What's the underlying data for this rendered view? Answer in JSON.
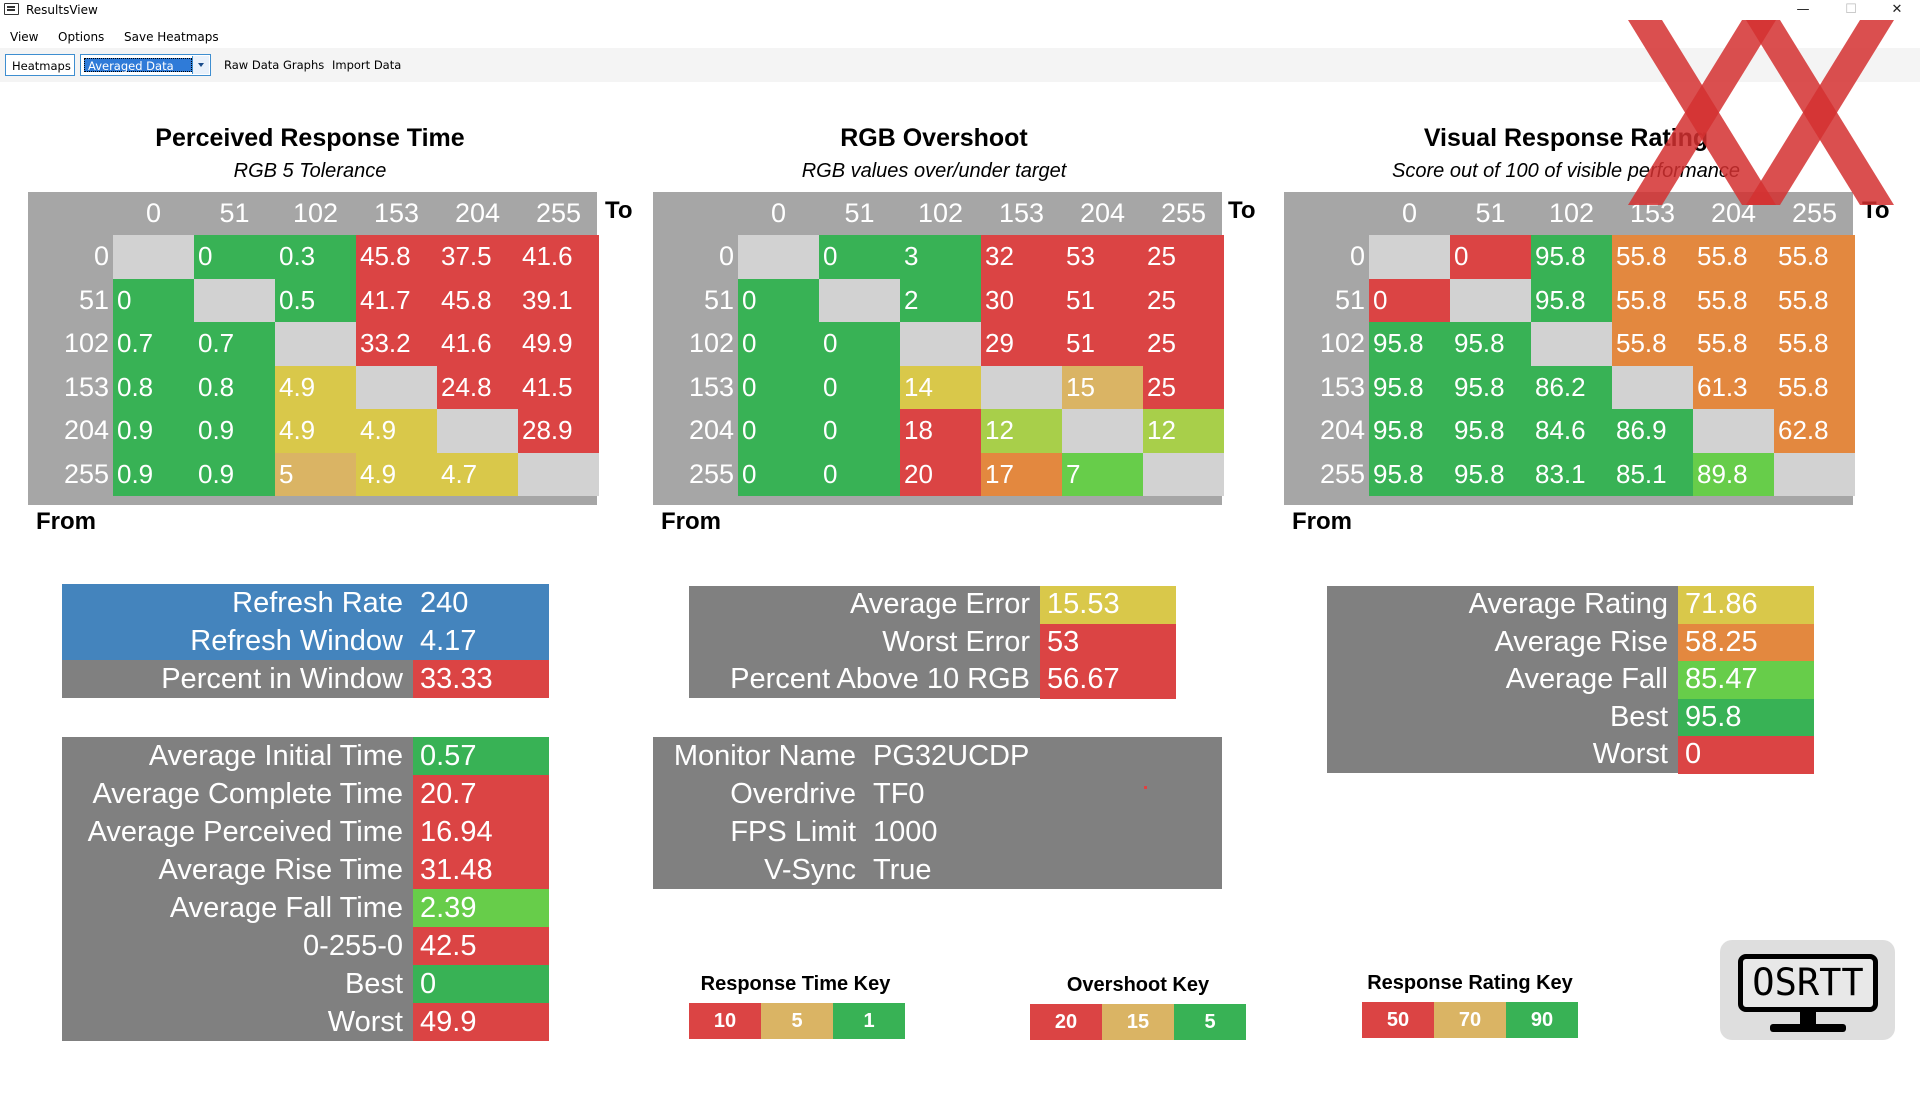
{
  "window": {
    "title": "ResultsView"
  },
  "menu": [
    "View",
    "Options",
    "Save Heatmaps"
  ],
  "toolbar": {
    "tab_heatmaps": "Heatmaps",
    "dropdown_value": "Averaged Data",
    "raw_graphs": "Raw Data Graphs",
    "import_data": "Import Data"
  },
  "colors": {
    "G": "#38b255",
    "L": "#67cd4a",
    "Y": "#d9c84a",
    "T": "#dab464",
    "O": "#e3883f",
    "R": "#db4444",
    "N": "#d2d2d2",
    "blue": "#4484bd",
    "lime": "#a8cf4a"
  },
  "axis": {
    "to": "To",
    "from": "From"
  },
  "heatmaps": [
    {
      "title": "Perceived Response Time",
      "subtitle": "RGB 5 Tolerance",
      "cols": [
        "0",
        "51",
        "102",
        "153",
        "204",
        "255"
      ],
      "rows": [
        "0",
        "51",
        "102",
        "153",
        "204",
        "255"
      ],
      "values": [
        [
          "",
          "0",
          "0.3",
          "45.8",
          "37.5",
          "41.6"
        ],
        [
          "0",
          "",
          "0.5",
          "41.7",
          "45.8",
          "39.1"
        ],
        [
          "0.7",
          "0.7",
          "",
          "33.2",
          "41.6",
          "49.9"
        ],
        [
          "0.8",
          "0.8",
          "4.9",
          "",
          "24.8",
          "41.5"
        ],
        [
          "0.9",
          "0.9",
          "4.9",
          "4.9",
          "",
          "28.9"
        ],
        [
          "0.9",
          "0.9",
          "5",
          "4.9",
          "4.7",
          ""
        ]
      ],
      "colors": [
        [
          "N",
          "G",
          "G",
          "R",
          "R",
          "R"
        ],
        [
          "G",
          "N",
          "G",
          "R",
          "R",
          "R"
        ],
        [
          "G",
          "G",
          "N",
          "R",
          "R",
          "R"
        ],
        [
          "G",
          "G",
          "Y",
          "N",
          "R",
          "R"
        ],
        [
          "G",
          "G",
          "Y",
          "Y",
          "N",
          "R"
        ],
        [
          "G",
          "G",
          "T",
          "Y",
          "Y",
          "N"
        ]
      ]
    },
    {
      "title": "RGB Overshoot",
      "subtitle": "RGB values over/under target",
      "cols": [
        "0",
        "51",
        "102",
        "153",
        "204",
        "255"
      ],
      "rows": [
        "0",
        "51",
        "102",
        "153",
        "204",
        "255"
      ],
      "values": [
        [
          "",
          "0",
          "3",
          "32",
          "53",
          "25"
        ],
        [
          "0",
          "",
          "2",
          "30",
          "51",
          "25"
        ],
        [
          "0",
          "0",
          "",
          "29",
          "51",
          "25"
        ],
        [
          "0",
          "0",
          "14",
          "",
          "15",
          "25"
        ],
        [
          "0",
          "0",
          "18",
          "12",
          "",
          "12"
        ],
        [
          "0",
          "0",
          "20",
          "17",
          "7",
          ""
        ]
      ],
      "colors": [
        [
          "N",
          "G",
          "G",
          "R",
          "R",
          "R"
        ],
        [
          "G",
          "N",
          "G",
          "R",
          "R",
          "R"
        ],
        [
          "G",
          "G",
          "N",
          "R",
          "R",
          "R"
        ],
        [
          "G",
          "G",
          "Y",
          "N",
          "T",
          "R"
        ],
        [
          "G",
          "G",
          "R",
          "lime",
          "N",
          "lime"
        ],
        [
          "G",
          "G",
          "R",
          "O",
          "L",
          "N"
        ]
      ]
    },
    {
      "title": "Visual Response Rating",
      "subtitle": "Score out of 100 of visible performance",
      "cols": [
        "0",
        "51",
        "102",
        "153",
        "204",
        "255"
      ],
      "rows": [
        "0",
        "51",
        "102",
        "153",
        "204",
        "255"
      ],
      "values": [
        [
          "",
          "0",
          "95.8",
          "55.8",
          "55.8",
          "55.8"
        ],
        [
          "0",
          "",
          "95.8",
          "55.8",
          "55.8",
          "55.8"
        ],
        [
          "95.8",
          "95.8",
          "",
          "55.8",
          "55.8",
          "55.8"
        ],
        [
          "95.8",
          "95.8",
          "86.2",
          "",
          "61.3",
          "55.8"
        ],
        [
          "95.8",
          "95.8",
          "84.6",
          "86.9",
          "",
          "62.8"
        ],
        [
          "95.8",
          "95.8",
          "83.1",
          "85.1",
          "89.8",
          ""
        ]
      ],
      "colors": [
        [
          "N",
          "R",
          "G",
          "O",
          "O",
          "O"
        ],
        [
          "R",
          "N",
          "G",
          "O",
          "O",
          "O"
        ],
        [
          "G",
          "G",
          "N",
          "O",
          "O",
          "O"
        ],
        [
          "G",
          "G",
          "G",
          "N",
          "O",
          "O"
        ],
        [
          "G",
          "G",
          "G",
          "G",
          "N",
          "O"
        ],
        [
          "G",
          "G",
          "G",
          "G",
          "L",
          "N"
        ]
      ]
    }
  ],
  "panels": {
    "refresh": [
      {
        "label": "Refresh Rate",
        "value": "240",
        "label_color": "blue",
        "value_color": "blue"
      },
      {
        "label": "Refresh Window",
        "value": "4.17",
        "label_color": "blue",
        "value_color": "blue"
      },
      {
        "label": "Percent in Window",
        "value": "33.33",
        "label_color": "gray",
        "value_color": "R"
      }
    ],
    "times": [
      {
        "label": "Average Initial Time",
        "value": "0.57",
        "value_color": "G"
      },
      {
        "label": "Average Complete Time",
        "value": "20.7",
        "value_color": "R"
      },
      {
        "label": "Average Perceived Time",
        "value": "16.94",
        "value_color": "R"
      },
      {
        "label": "Average Rise Time",
        "value": "31.48",
        "value_color": "R"
      },
      {
        "label": "Average Fall Time",
        "value": "2.39",
        "value_color": "L"
      },
      {
        "label": "0-255-0",
        "value": "42.5",
        "value_color": "R"
      },
      {
        "label": "Best",
        "value": "0",
        "value_color": "G"
      },
      {
        "label": "Worst",
        "value": "49.9",
        "value_color": "R"
      }
    ],
    "overshoot": [
      {
        "label": "Average Error",
        "value": "15.53",
        "value_color": "Y"
      },
      {
        "label": "Worst Error",
        "value": "53",
        "value_color": "R"
      },
      {
        "label": "Percent Above 10 RGB",
        "value": "56.67",
        "value_color": "R"
      }
    ],
    "monitor": [
      {
        "label": "Monitor Name",
        "value": "PG32UCDP"
      },
      {
        "label": "Overdrive",
        "value": "TF0"
      },
      {
        "label": "FPS Limit",
        "value": "1000"
      },
      {
        "label": "V-Sync",
        "value": "True"
      }
    ],
    "rating": [
      {
        "label": "Average Rating",
        "value": "71.86",
        "value_color": "Y"
      },
      {
        "label": "Average Rise",
        "value": "58.25",
        "value_color": "O"
      },
      {
        "label": "Average Fall",
        "value": "85.47",
        "value_color": "L"
      },
      {
        "label": "Best",
        "value": "95.8",
        "value_color": "G"
      },
      {
        "label": "Worst",
        "value": "0",
        "value_color": "R"
      }
    ]
  },
  "keys": [
    {
      "title": "Response Time Key",
      "items": [
        {
          "text": "10",
          "color": "R"
        },
        {
          "text": "5",
          "color": "T"
        },
        {
          "text": "1",
          "color": "G"
        }
      ]
    },
    {
      "title": "Overshoot Key",
      "items": [
        {
          "text": "20",
          "color": "R"
        },
        {
          "text": "15",
          "color": "T"
        },
        {
          "text": "5",
          "color": "G"
        }
      ]
    },
    {
      "title": "Response Rating Key",
      "items": [
        {
          "text": "50",
          "color": "R"
        },
        {
          "text": "70",
          "color": "T"
        },
        {
          "text": "90",
          "color": "G"
        }
      ]
    }
  ],
  "logo": {
    "text": "OSRTT"
  }
}
